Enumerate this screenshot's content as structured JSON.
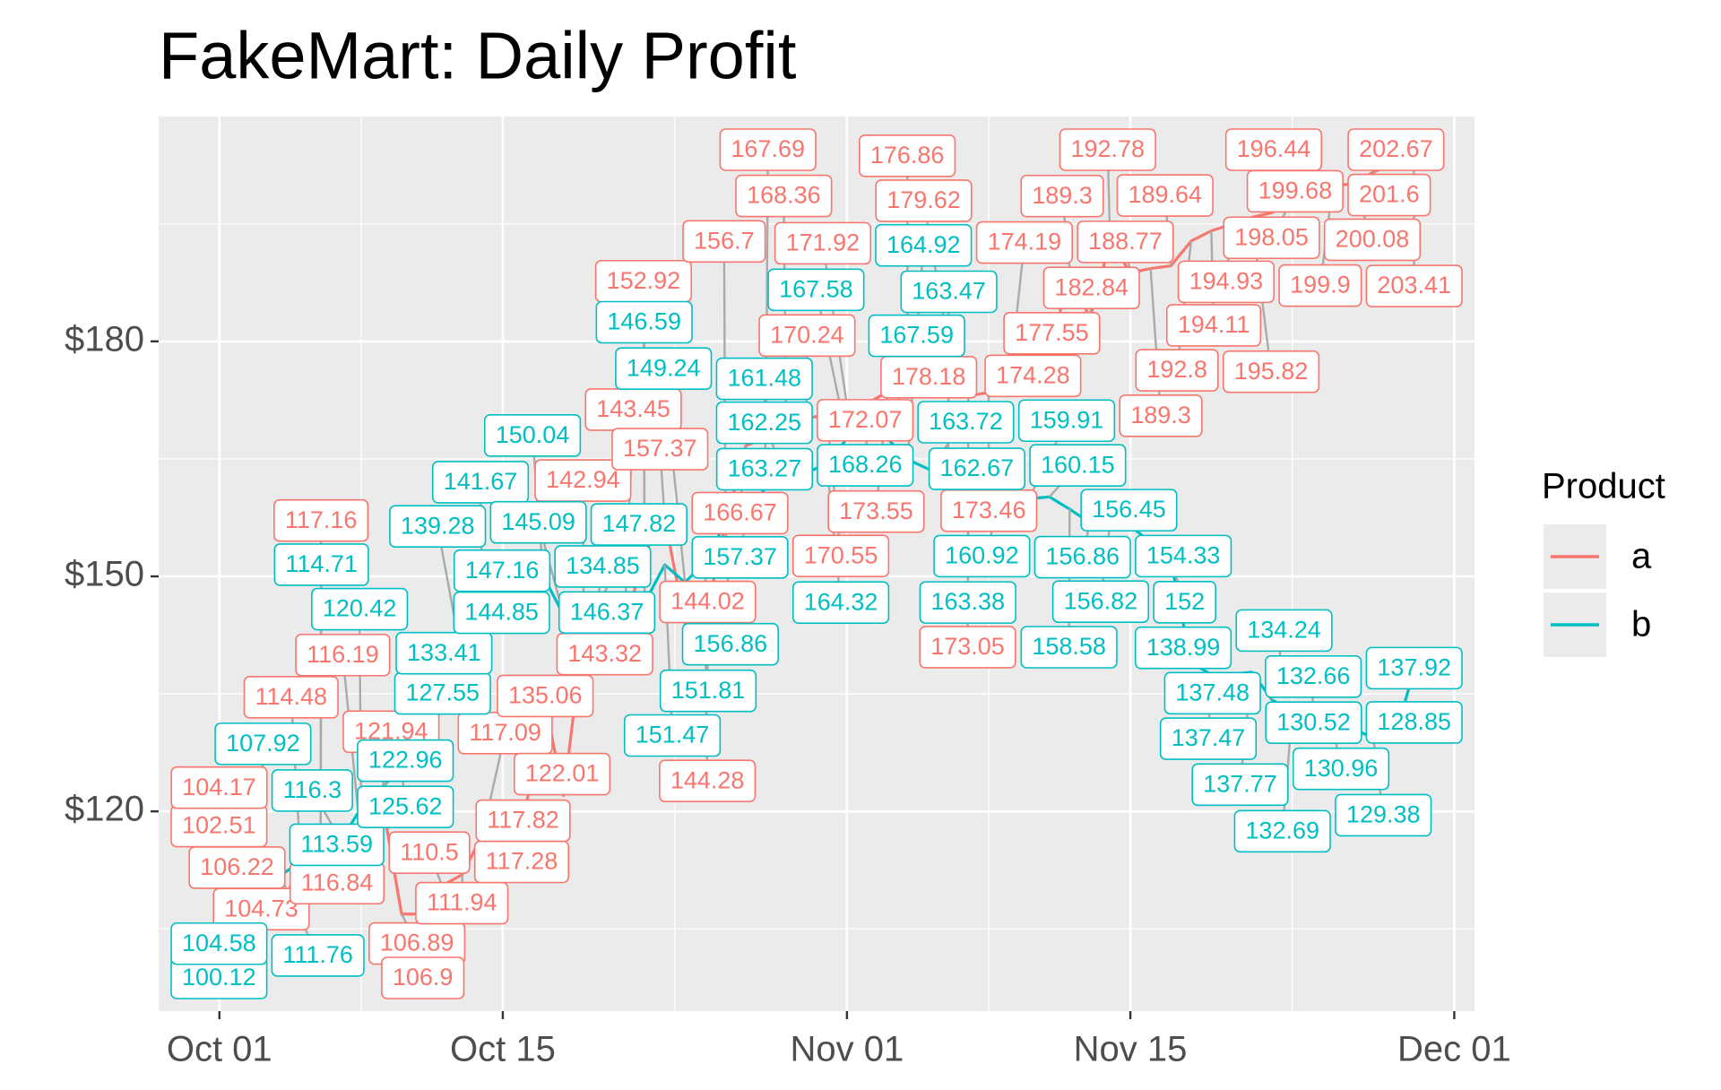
{
  "chart_data": {
    "type": "line",
    "title": "FakeMart: Daily Profit",
    "legend_title": "Product",
    "x": [
      "10-01",
      "10-02",
      "10-03",
      "10-04",
      "10-05",
      "10-06",
      "10-07",
      "10-08",
      "10-09",
      "10-10",
      "10-11",
      "10-12",
      "10-13",
      "10-14",
      "10-15",
      "10-16",
      "10-17",
      "10-18",
      "10-19",
      "10-20",
      "10-21",
      "10-22",
      "10-23",
      "10-24",
      "10-25",
      "10-26",
      "10-27",
      "10-28",
      "10-29",
      "10-30",
      "10-31",
      "11-01",
      "11-02",
      "11-03",
      "11-04",
      "11-05",
      "11-06",
      "11-07",
      "11-08",
      "11-09",
      "11-10",
      "11-11",
      "11-12",
      "11-13",
      "11-14",
      "11-15",
      "11-16",
      "11-17",
      "11-18",
      "11-19",
      "11-20",
      "11-21",
      "11-22",
      "11-23",
      "11-24",
      "11-25",
      "11-26",
      "11-27",
      "11-28",
      "11-29"
    ],
    "series": [
      {
        "name": "a",
        "color": "#F8766D",
        "values": [
          102.51,
          104.17,
          104.73,
          106.22,
          114.48,
          117.16,
          116.84,
          116.19,
          121.94,
          106.89,
          106.9,
          110.5,
          111.94,
          117.09,
          117.28,
          117.82,
          135.06,
          122.01,
          142.94,
          143.32,
          143.45,
          152.92,
          157.37,
          144.02,
          144.28,
          156.7,
          166.67,
          167.69,
          168.36,
          170.24,
          170.55,
          171.92,
          172.07,
          173.55,
          176.86,
          178.18,
          179.62,
          173.05,
          173.46,
          174.19,
          174.28,
          177.55,
          189.3,
          182.84,
          192.78,
          188.77,
          189.3,
          189.64,
          192.8,
          194.11,
          194.93,
          195.82,
          196.44,
          198.05,
          199.68,
          199.9,
          200.08,
          201.6,
          202.67,
          203.41
        ]
      },
      {
        "name": "b",
        "color": "#00BFC4",
        "values": [
          100.12,
          104.58,
          107.92,
          111.76,
          113.59,
          114.71,
          116.3,
          120.42,
          122.96,
          125.62,
          127.55,
          133.41,
          139.28,
          141.67,
          144.85,
          147.16,
          150.04,
          145.09,
          134.85,
          147.82,
          146.37,
          146.59,
          151.47,
          149.24,
          151.81,
          156.86,
          157.37,
          161.48,
          162.25,
          163.27,
          164.32,
          167.58,
          168.26,
          167.59,
          164.92,
          163.72,
          163.47,
          163.38,
          162.67,
          160.92,
          159.91,
          160.15,
          158.58,
          156.86,
          156.82,
          156.45,
          154.33,
          152,
          138.99,
          137.47,
          137.48,
          137.77,
          134.24,
          132.69,
          132.66,
          130.96,
          130.52,
          129.38,
          128.85,
          137.92
        ]
      }
    ],
    "xlim": [
      "09-28",
      "12-02"
    ],
    "xticks": [
      {
        "value": "10-01",
        "label": "Oct 01"
      },
      {
        "value": "10-15",
        "label": "Oct 15"
      },
      {
        "value": "11-01",
        "label": "Nov 01"
      },
      {
        "value": "11-15",
        "label": "Nov 15"
      },
      {
        "value": "12-01",
        "label": "Dec 01"
      }
    ],
    "ylim": [
      94.5,
      208.7
    ],
    "yticks": [
      {
        "value": 120,
        "label": "$120"
      },
      {
        "value": 150,
        "label": "$150"
      },
      {
        "value": 180,
        "label": "$180"
      }
    ],
    "grid": true,
    "legend_position": "right"
  }
}
